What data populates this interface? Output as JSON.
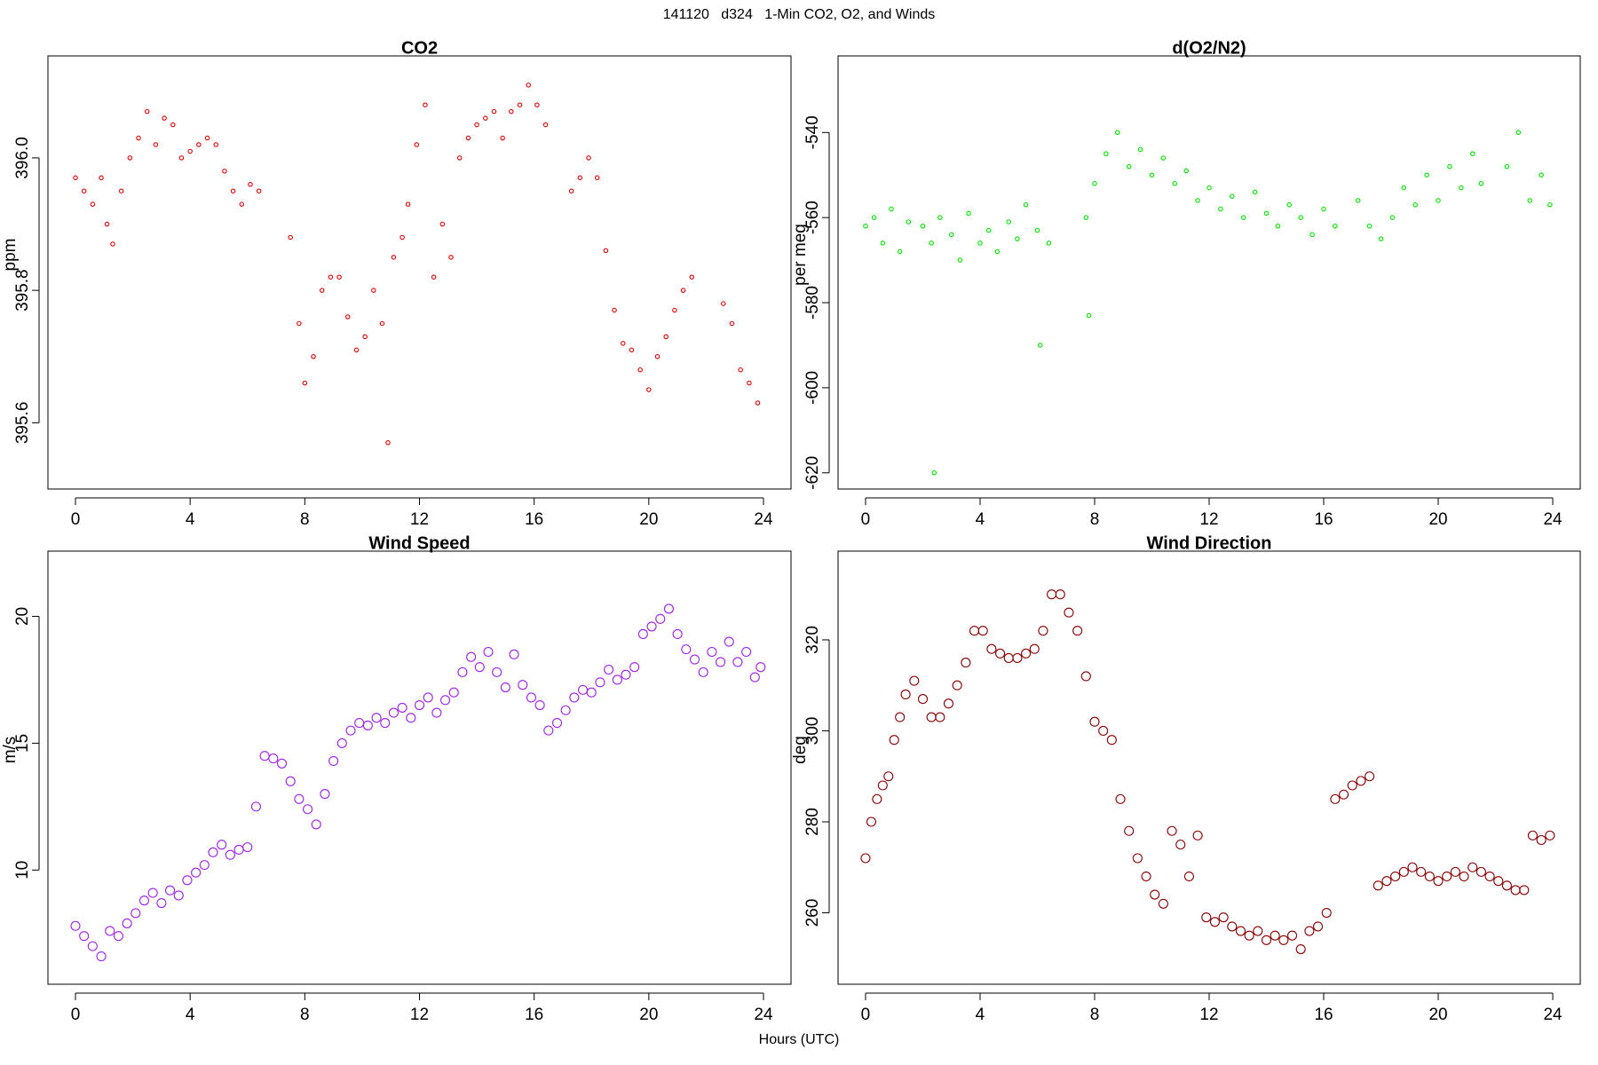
{
  "title": "141120   d324   1-Min CO2, O2, and Winds",
  "xlabel": "Hours (UTC)",
  "chart_data": [
    {
      "type": "scatter",
      "title": "CO2",
      "ylabel": "ppm",
      "color": "#e00000",
      "xlim": [
        -0.96,
        24.96
      ],
      "xticks": [
        0,
        4,
        8,
        12,
        16,
        20,
        24
      ],
      "ylim": [
        395.5,
        396.154
      ],
      "yticks": [
        395.6,
        395.8,
        {
          "value": 396,
          "label": "396.0"
        }
      ],
      "x": [
        0,
        0.3,
        0.6,
        0.9,
        1.1,
        1.3,
        1.6,
        1.9,
        2.2,
        2.5,
        2.8,
        3.1,
        3.4,
        3.7,
        4.0,
        4.3,
        4.6,
        4.9,
        5.2,
        5.5,
        5.8,
        6.1,
        6.4,
        7.5,
        7.8,
        8.0,
        8.3,
        8.6,
        8.9,
        9.2,
        9.5,
        9.8,
        10.1,
        10.4,
        10.7,
        10.9,
        11.1,
        11.4,
        11.6,
        11.9,
        12.2,
        12.5,
        12.8,
        13.1,
        13.4,
        13.7,
        14.0,
        14.3,
        14.6,
        14.9,
        15.2,
        15.5,
        15.8,
        16.1,
        16.4,
        17.3,
        17.6,
        17.9,
        18.2,
        18.5,
        18.8,
        19.1,
        19.4,
        19.7,
        20.0,
        20.3,
        20.6,
        20.9,
        21.2,
        21.5,
        22.6,
        22.9,
        23.2,
        23.5,
        23.8
      ],
      "values": [
        395.97,
        395.95,
        395.93,
        395.97,
        395.9,
        395.87,
        395.95,
        396.0,
        396.03,
        396.07,
        396.02,
        396.06,
        396.05,
        396.0,
        396.01,
        396.02,
        396.03,
        396.02,
        395.98,
        395.95,
        395.93,
        395.96,
        395.95,
        395.88,
        395.75,
        395.66,
        395.7,
        395.8,
        395.82,
        395.82,
        395.76,
        395.71,
        395.73,
        395.8,
        395.75,
        395.57,
        395.85,
        395.88,
        395.93,
        396.02,
        396.08,
        395.82,
        395.9,
        395.85,
        396.0,
        396.03,
        396.05,
        396.06,
        396.07,
        396.03,
        396.07,
        396.08,
        396.11,
        396.08,
        396.05,
        395.95,
        395.97,
        396.0,
        395.97,
        395.86,
        395.77,
        395.72,
        395.71,
        395.68,
        395.65,
        395.7,
        395.73,
        395.77,
        395.8,
        395.82,
        395.78,
        395.75,
        395.68,
        395.66,
        395.63
      ]
    },
    {
      "type": "scatter",
      "title": "d(O2/N2)",
      "ylabel": "per meg",
      "color": "#00e000",
      "xlim": [
        -0.96,
        24.96
      ],
      "xticks": [
        0,
        4,
        8,
        12,
        16,
        20,
        24
      ],
      "ylim": [
        -623.8,
        -522
      ],
      "yticks": [
        -620,
        -600,
        -580,
        -560,
        -540
      ],
      "x": [
        0,
        0.3,
        0.6,
        0.9,
        1.2,
        1.5,
        2.0,
        2.3,
        2.4,
        2.6,
        3.0,
        3.3,
        3.6,
        4.0,
        4.3,
        4.6,
        5.0,
        5.3,
        5.6,
        6.0,
        6.1,
        6.4,
        7.7,
        7.8,
        8.0,
        8.4,
        8.8,
        9.2,
        9.6,
        10.0,
        10.4,
        10.8,
        11.2,
        11.6,
        12.0,
        12.4,
        12.8,
        13.2,
        13.6,
        14.0,
        14.4,
        14.8,
        15.2,
        15.6,
        16.0,
        16.4,
        17.2,
        17.6,
        18.0,
        18.4,
        18.8,
        19.2,
        19.6,
        20.0,
        20.4,
        20.8,
        21.2,
        21.5,
        22.4,
        22.8,
        23.2,
        23.6,
        23.9
      ],
      "values": [
        -562,
        -560,
        -566,
        -558,
        -568,
        -561,
        -562,
        -566,
        -620,
        -560,
        -564,
        -570,
        -559,
        -566,
        -563,
        -568,
        -561,
        -565,
        -557,
        -563,
        -590,
        -566,
        -560,
        -583,
        -552,
        -545,
        -540,
        -548,
        -544,
        -550,
        -546,
        -552,
        -549,
        -556,
        -553,
        -558,
        -555,
        -560,
        -554,
        -559,
        -562,
        -557,
        -560,
        -564,
        -558,
        -562,
        -556,
        -562,
        -565,
        -560,
        -553,
        -557,
        -550,
        -556,
        -548,
        -553,
        -545,
        -552,
        -548,
        -540,
        -556,
        -550,
        -557
      ]
    },
    {
      "type": "scatter",
      "title": "Wind Speed",
      "ylabel": "m/s",
      "color": "#a020f0",
      "xlim": [
        -0.96,
        24.96
      ],
      "xticks": [
        0,
        4,
        8,
        12,
        16,
        20,
        24
      ],
      "ylim": [
        5.5,
        22.57
      ],
      "yticks": [
        10,
        15,
        20
      ],
      "x": [
        0,
        0.3,
        0.6,
        0.9,
        1.2,
        1.5,
        1.8,
        2.1,
        2.4,
        2.7,
        3.0,
        3.3,
        3.6,
        3.9,
        4.2,
        4.5,
        4.8,
        5.1,
        5.4,
        5.7,
        6.0,
        6.3,
        6.6,
        6.9,
        7.2,
        7.5,
        7.8,
        8.1,
        8.4,
        8.7,
        9.0,
        9.3,
        9.6,
        9.9,
        10.2,
        10.5,
        10.8,
        11.1,
        11.4,
        11.7,
        12.0,
        12.3,
        12.6,
        12.9,
        13.2,
        13.5,
        13.8,
        14.1,
        14.4,
        14.7,
        15.0,
        15.3,
        15.6,
        15.9,
        16.2,
        16.5,
        16.8,
        17.1,
        17.4,
        17.7,
        18.0,
        18.3,
        18.6,
        18.9,
        19.2,
        19.5,
        19.8,
        20.1,
        20.4,
        20.7,
        21.0,
        21.3,
        21.6,
        21.9,
        22.2,
        22.5,
        22.8,
        23.1,
        23.4,
        23.7,
        23.9
      ],
      "values": [
        7.8,
        7.4,
        7.0,
        6.6,
        7.6,
        7.4,
        7.9,
        8.3,
        8.8,
        9.1,
        8.7,
        9.2,
        9.0,
        9.6,
        9.9,
        10.2,
        10.7,
        11.0,
        10.6,
        10.8,
        10.9,
        12.5,
        14.5,
        14.4,
        14.2,
        13.5,
        12.8,
        12.4,
        11.8,
        13.0,
        14.3,
        15.0,
        15.5,
        15.8,
        15.7,
        16.0,
        15.8,
        16.2,
        16.4,
        16.0,
        16.5,
        16.8,
        16.2,
        16.7,
        17.0,
        17.8,
        18.4,
        18.0,
        18.6,
        17.8,
        17.2,
        18.5,
        17.3,
        16.8,
        16.5,
        15.5,
        15.8,
        16.3,
        16.8,
        17.1,
        17.0,
        17.4,
        17.9,
        17.5,
        17.7,
        18.0,
        19.3,
        19.6,
        19.9,
        20.3,
        19.3,
        18.7,
        18.3,
        17.8,
        18.6,
        18.2,
        19.0,
        18.2,
        18.6,
        17.6,
        18.0
      ]
    },
    {
      "type": "scatter",
      "title": "Wind Direction",
      "ylabel": "deg",
      "color": "#8b0000",
      "xlim": [
        -0.96,
        24.96
      ],
      "xticks": [
        0,
        4,
        8,
        12,
        16,
        20,
        24
      ],
      "ylim": [
        244.3,
        339.5
      ],
      "yticks": [
        260,
        280,
        300,
        320
      ],
      "x": [
        0,
        0.2,
        0.4,
        0.6,
        0.8,
        1.0,
        1.2,
        1.4,
        1.7,
        2.0,
        2.3,
        2.6,
        2.9,
        3.2,
        3.5,
        3.8,
        4.1,
        4.4,
        4.7,
        5.0,
        5.3,
        5.6,
        5.9,
        6.2,
        6.5,
        6.8,
        7.1,
        7.4,
        7.7,
        8.0,
        8.3,
        8.6,
        8.9,
        9.2,
        9.5,
        9.8,
        10.1,
        10.4,
        10.7,
        11.0,
        11.3,
        11.6,
        11.9,
        12.2,
        12.5,
        12.8,
        13.1,
        13.4,
        13.7,
        14.0,
        14.3,
        14.6,
        14.9,
        15.2,
        15.5,
        15.8,
        16.1,
        16.4,
        16.7,
        17.0,
        17.3,
        17.6,
        17.9,
        18.2,
        18.5,
        18.8,
        19.1,
        19.4,
        19.7,
        20.0,
        20.3,
        20.6,
        20.9,
        21.2,
        21.5,
        21.8,
        22.1,
        22.4,
        22.7,
        23.0,
        23.3,
        23.6,
        23.9
      ],
      "values": [
        272,
        280,
        285,
        288,
        290,
        298,
        303,
        308,
        311,
        307,
        303,
        303,
        306,
        310,
        315,
        322,
        322,
        318,
        317,
        316,
        316,
        317,
        318,
        322,
        330,
        330,
        326,
        322,
        312,
        302,
        300,
        298,
        285,
        278,
        272,
        268,
        264,
        262,
        278,
        275,
        268,
        277,
        259,
        258,
        259,
        257,
        256,
        255,
        256,
        254,
        255,
        254,
        255,
        252,
        256,
        257,
        260,
        285,
        286,
        288,
        289,
        290,
        266,
        267,
        268,
        269,
        270,
        269,
        268,
        267,
        268,
        269,
        268,
        270,
        269,
        268,
        267,
        266,
        265,
        265,
        277,
        276,
        277
      ]
    }
  ]
}
